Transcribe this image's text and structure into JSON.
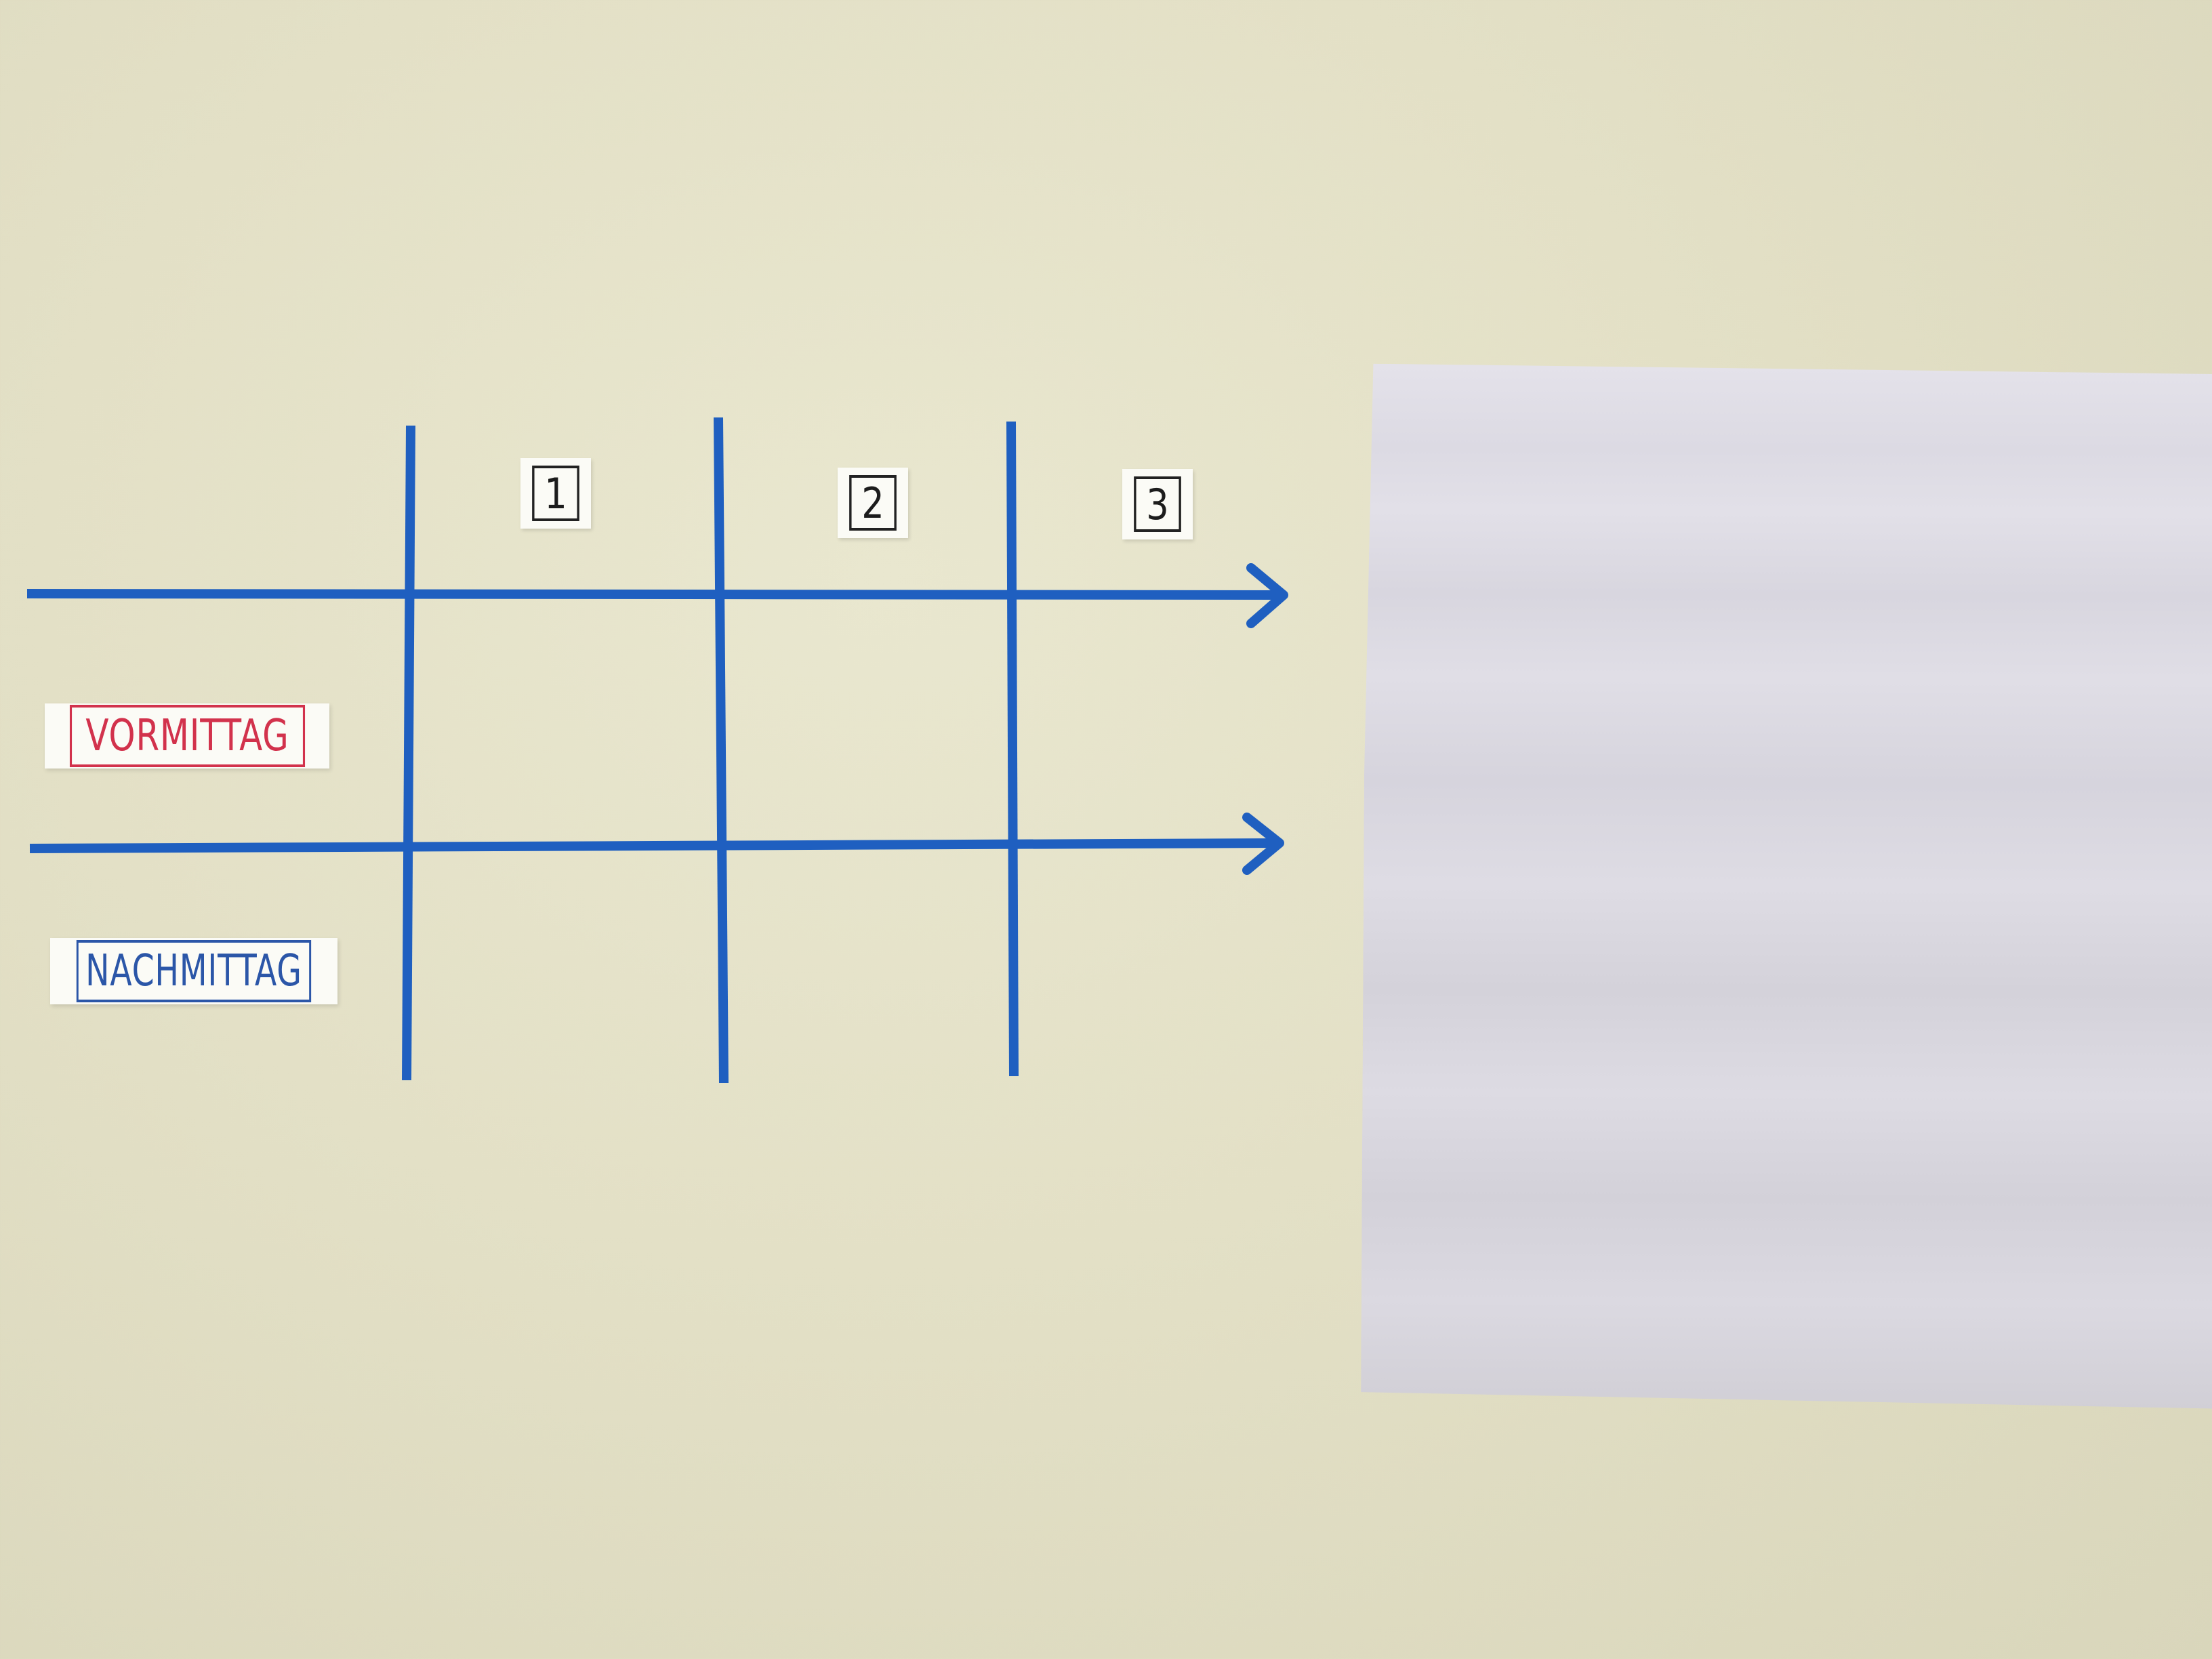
{
  "colors": {
    "wall": "#e3e0c6",
    "tape": "#1f5fc0",
    "vormittag": "#d2324c",
    "nachmittag": "#2b56a8",
    "paper": "#dcdae3"
  },
  "columns": [
    "1",
    "2",
    "3"
  ],
  "rows": [
    "VORMITTAG",
    "NACHMITTAG"
  ]
}
